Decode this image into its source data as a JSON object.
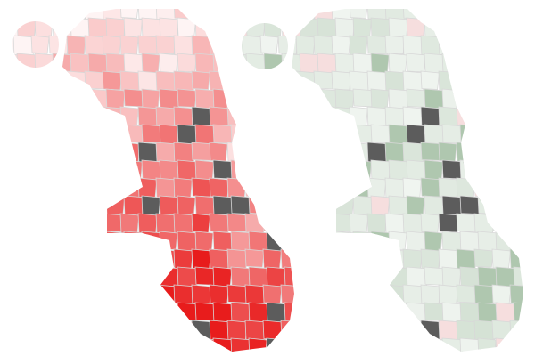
{
  "maps": [
    {
      "color": "#e81c1c"
    },
    {
      "color": "#6e9a6e"
    }
  ]
}
